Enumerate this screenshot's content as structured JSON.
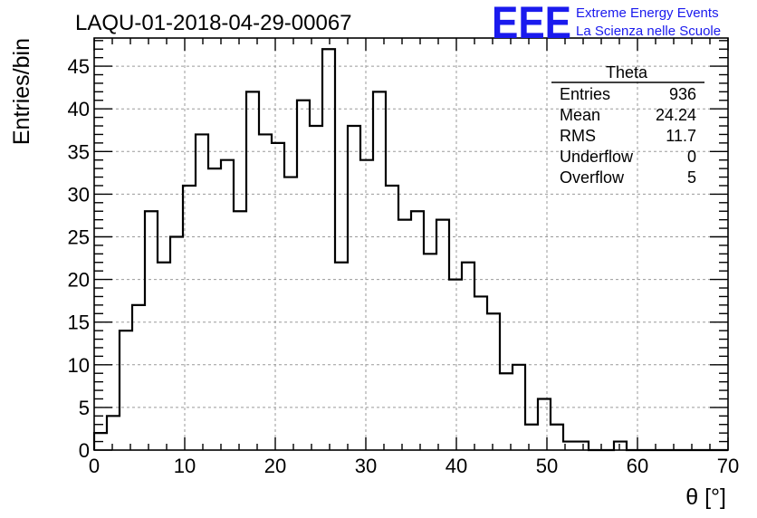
{
  "chart_data": {
    "type": "histogram",
    "title": "LAQU-01-2018-04-29-00067",
    "xlabel": "θ [°]",
    "ylabel": "Entries/bin",
    "xlim": [
      0,
      70
    ],
    "ylim": [
      0,
      48.3
    ],
    "grid": true,
    "bin_width": 1.4,
    "x_ticks": [
      0,
      10,
      20,
      30,
      40,
      50,
      60,
      70
    ],
    "y_ticks": [
      0,
      5,
      10,
      15,
      20,
      25,
      30,
      35,
      40,
      45
    ],
    "bin_edges": [
      0,
      1.4,
      2.8,
      4.2,
      5.6,
      7.0,
      8.4,
      9.8,
      11.2,
      12.6,
      14.0,
      15.4,
      16.8,
      18.2,
      19.6,
      21.0,
      22.4,
      23.8,
      25.2,
      26.6,
      28.0,
      29.4,
      30.8,
      32.2,
      33.6,
      35.0,
      36.4,
      37.8,
      39.2,
      40.6,
      42.0,
      43.4,
      44.8,
      46.2,
      47.6,
      49.0,
      50.4,
      51.8,
      53.2,
      54.6,
      56.0,
      57.4,
      58.8,
      60.2,
      61.6,
      63.0,
      64.4,
      65.8,
      67.2,
      68.6,
      70.0
    ],
    "values": [
      2,
      4,
      14,
      17,
      28,
      22,
      25,
      31,
      37,
      33,
      34,
      28,
      42,
      37,
      36,
      32,
      41,
      38,
      47,
      22,
      38,
      34,
      42,
      31,
      27,
      28,
      23,
      27,
      20,
      22,
      18,
      16,
      9,
      10,
      3,
      6,
      3,
      1,
      1,
      0,
      0,
      1,
      0,
      0,
      0,
      0,
      0,
      0,
      0,
      0
    ],
    "stats": {
      "name": "Theta",
      "rows": [
        {
          "label": "Entries",
          "value": "936"
        },
        {
          "label": "Mean",
          "value": "24.24"
        },
        {
          "label": "RMS",
          "value": "11.7"
        },
        {
          "label": "Underflow",
          "value": "0"
        },
        {
          "label": "Overflow",
          "value": "5"
        }
      ]
    }
  },
  "logo": {
    "mark": "EEE",
    "line1": "Extreme Energy Events",
    "line2": "La Scienza nelle Scuole",
    "color": "#1a1aee"
  },
  "colors": {
    "line": "#000000",
    "grid": "#9a9a9a"
  }
}
